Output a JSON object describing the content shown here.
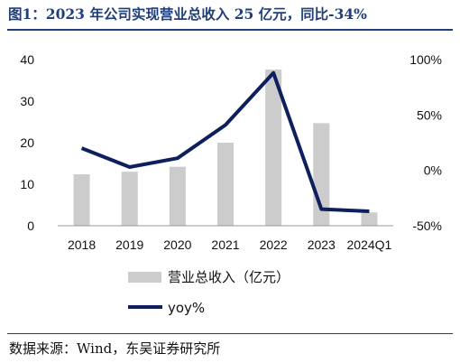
{
  "title": "图1：2023 年公司实现营业总收入 25 亿元，同比-34%",
  "source": "数据来源：Wind，东吴证券研究所",
  "colors": {
    "bar": "#cccccc",
    "line": "#0d1f5c",
    "title": "#1f3e7a",
    "axis": "#999999"
  },
  "chart_data": {
    "type": "bar+line",
    "categories": [
      "2018",
      "2019",
      "2020",
      "2021",
      "2022",
      "2023",
      "2024Q1"
    ],
    "series": [
      {
        "name": "营业总收入（亿元）",
        "type": "bar",
        "axis": "left",
        "values": [
          12.4,
          13.0,
          14.2,
          20.0,
          37.6,
          24.7,
          3.2
        ]
      },
      {
        "name": "yoy%",
        "type": "line",
        "axis": "right",
        "values": [
          20,
          3,
          11,
          41,
          88,
          -35,
          -37
        ]
      }
    ],
    "left_axis": {
      "ylim": [
        0,
        40
      ],
      "ticks": [
        "0",
        "10",
        "20",
        "30",
        "40"
      ]
    },
    "right_axis": {
      "ylim": [
        -50,
        100
      ],
      "ticks": [
        "-50%",
        "0%",
        "50%",
        "100%"
      ]
    },
    "grid": false,
    "legend_position": "bottom"
  }
}
